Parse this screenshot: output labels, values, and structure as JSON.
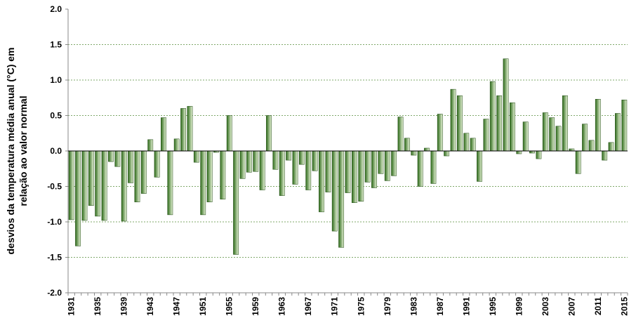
{
  "chart_data": {
    "type": "bar",
    "title": "",
    "xlabel": "",
    "ylabel_lines": [
      "desvios da temperatura média anual (°C) em",
      "relação ao valor normal"
    ],
    "ylim": [
      -2.0,
      2.0
    ],
    "y_ticks": [
      "2.0",
      "1.5",
      "1.0",
      "0.5",
      "0.0",
      "-0.5",
      "-1.0",
      "-1.5",
      "-2.0"
    ],
    "y_tick_values": [
      2.0,
      1.5,
      1.0,
      0.5,
      0.0,
      -0.5,
      -1.0,
      -1.5,
      -2.0
    ],
    "x_tick_labels": [
      "1931",
      "1935",
      "1939",
      "1943",
      "1947",
      "1951",
      "1955",
      "1959",
      "1963",
      "1967",
      "1971",
      "1975",
      "1979",
      "1983",
      "1987",
      "1991",
      "1995",
      "1999",
      "2003",
      "2007",
      "2011",
      "2015"
    ],
    "grid": "horizontal dashed",
    "colors": {
      "bar_dark": "#2e6b1a",
      "bar_light": "#e6f2d6",
      "bar_stroke": "#1f4a12",
      "grid": "#7fa86a",
      "axis": "#888888"
    },
    "categories": [
      "1931",
      "1932",
      "1933",
      "1934",
      "1935",
      "1936",
      "1937",
      "1938",
      "1939",
      "1940",
      "1941",
      "1942",
      "1943",
      "1944",
      "1945",
      "1946",
      "1947",
      "1948",
      "1949",
      "1950",
      "1951",
      "1952",
      "1953",
      "1954",
      "1955",
      "1956",
      "1957",
      "1958",
      "1959",
      "1960",
      "1961",
      "1962",
      "1963",
      "1964",
      "1965",
      "1966",
      "1967",
      "1968",
      "1969",
      "1970",
      "1971",
      "1972",
      "1973",
      "1974",
      "1975",
      "1976",
      "1977",
      "1978",
      "1979",
      "1980",
      "1981",
      "1982",
      "1983",
      "1984",
      "1985",
      "1986",
      "1987",
      "1988",
      "1989",
      "1990",
      "1991",
      "1992",
      "1993",
      "1994",
      "1995",
      "1996",
      "1997",
      "1998",
      "1999",
      "2000",
      "2001",
      "2002",
      "2003",
      "2004",
      "2005",
      "2006",
      "2007",
      "2008",
      "2009",
      "2010",
      "2011",
      "2012",
      "2013",
      "2014",
      "2015"
    ],
    "values": [
      -0.97,
      -1.34,
      -0.98,
      -0.77,
      -0.92,
      -0.98,
      -0.15,
      -0.22,
      -0.99,
      -0.45,
      -0.72,
      -0.6,
      0.16,
      -0.37,
      0.47,
      -0.9,
      0.17,
      0.6,
      0.63,
      -0.16,
      -0.9,
      -0.72,
      -0.02,
      -0.68,
      0.5,
      -1.46,
      -0.39,
      -0.3,
      -0.29,
      -0.55,
      0.5,
      -0.26,
      -0.63,
      -0.13,
      -0.47,
      -0.19,
      -0.55,
      -0.28,
      -0.86,
      -0.58,
      -1.13,
      -1.36,
      -0.59,
      -0.73,
      -0.71,
      -0.44,
      -0.52,
      -0.32,
      -0.42,
      -0.35,
      0.48,
      0.18,
      -0.06,
      -0.5,
      0.04,
      -0.46,
      0.52,
      -0.07,
      0.87,
      0.78,
      0.25,
      0.18,
      -0.43,
      0.45,
      0.98,
      0.78,
      1.3,
      0.68,
      -0.04,
      0.41,
      -0.03,
      -0.11,
      0.54,
      0.47,
      0.35,
      0.78,
      0.03,
      -0.32,
      0.38,
      0.15,
      0.73,
      -0.13,
      0.12,
      0.53,
      0.72
    ]
  }
}
